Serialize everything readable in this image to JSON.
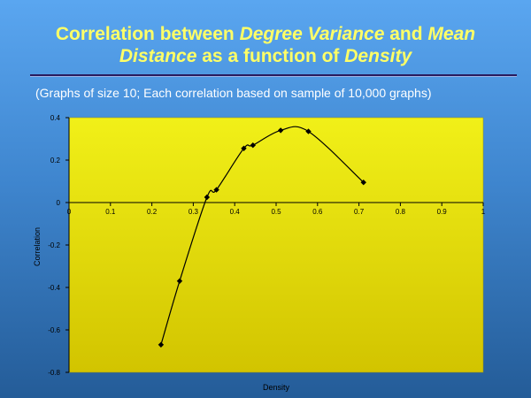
{
  "slide": {
    "title_parts": [
      {
        "text": "Correlation between ",
        "italic": false
      },
      {
        "text": "Degree Variance",
        "italic": true
      },
      {
        "text": " and ",
        "italic": false
      },
      {
        "text": "Mean",
        "italic": true
      },
      {
        "text": "\n",
        "italic": false
      },
      {
        "text": "Distance",
        "italic": true
      },
      {
        "text": " as a function of ",
        "italic": false
      },
      {
        "text": "Density",
        "italic": true
      }
    ],
    "subtitle": "(Graphs of size 10; Each correlation based on sample of 10,000 graphs)"
  },
  "colors": {
    "plot_fill": "#f1f018",
    "plot_fill_bottom": "#d2c400",
    "line": "#000000"
  },
  "chart_data": {
    "type": "line",
    "xlabel": "Density",
    "ylabel": "Correlation",
    "xlim": [
      0,
      1
    ],
    "ylim": [
      -0.8,
      0.4
    ],
    "x_ticks": [
      {
        "value": 0,
        "label": "0"
      },
      {
        "value": 0.1,
        "label": "0.1"
      },
      {
        "value": 0.2,
        "label": "0.2"
      },
      {
        "value": 0.3,
        "label": "0.3"
      },
      {
        "value": 0.4,
        "label": "0.4"
      },
      {
        "value": 0.5,
        "label": "0.5"
      },
      {
        "value": 0.6,
        "label": "0.6"
      },
      {
        "value": 0.7,
        "label": "0.7"
      },
      {
        "value": 0.8,
        "label": "0.8"
      },
      {
        "value": 0.9,
        "label": "0.9"
      },
      {
        "value": 1,
        "label": "1"
      }
    ],
    "y_ticks": [
      {
        "value": 0.4,
        "label": "0.4"
      },
      {
        "value": 0.2,
        "label": "0.2"
      },
      {
        "value": 0,
        "label": "0"
      },
      {
        "value": -0.2,
        "label": "-0.2"
      },
      {
        "value": -0.4,
        "label": "-0.4"
      },
      {
        "value": -0.6,
        "label": "-0.6"
      },
      {
        "value": -0.8,
        "label": "-0.8"
      }
    ],
    "series": [
      {
        "x": [
          0.222,
          0.267,
          0.333,
          0.356,
          0.422,
          0.444,
          0.511,
          0.578,
          0.711
        ],
        "y": [
          -0.67,
          -0.37,
          0.025,
          0.06,
          0.255,
          0.27,
          0.34,
          0.335,
          0.095
        ]
      }
    ],
    "smooth": true,
    "marker": "diamond",
    "grid": false,
    "legend": "none"
  }
}
